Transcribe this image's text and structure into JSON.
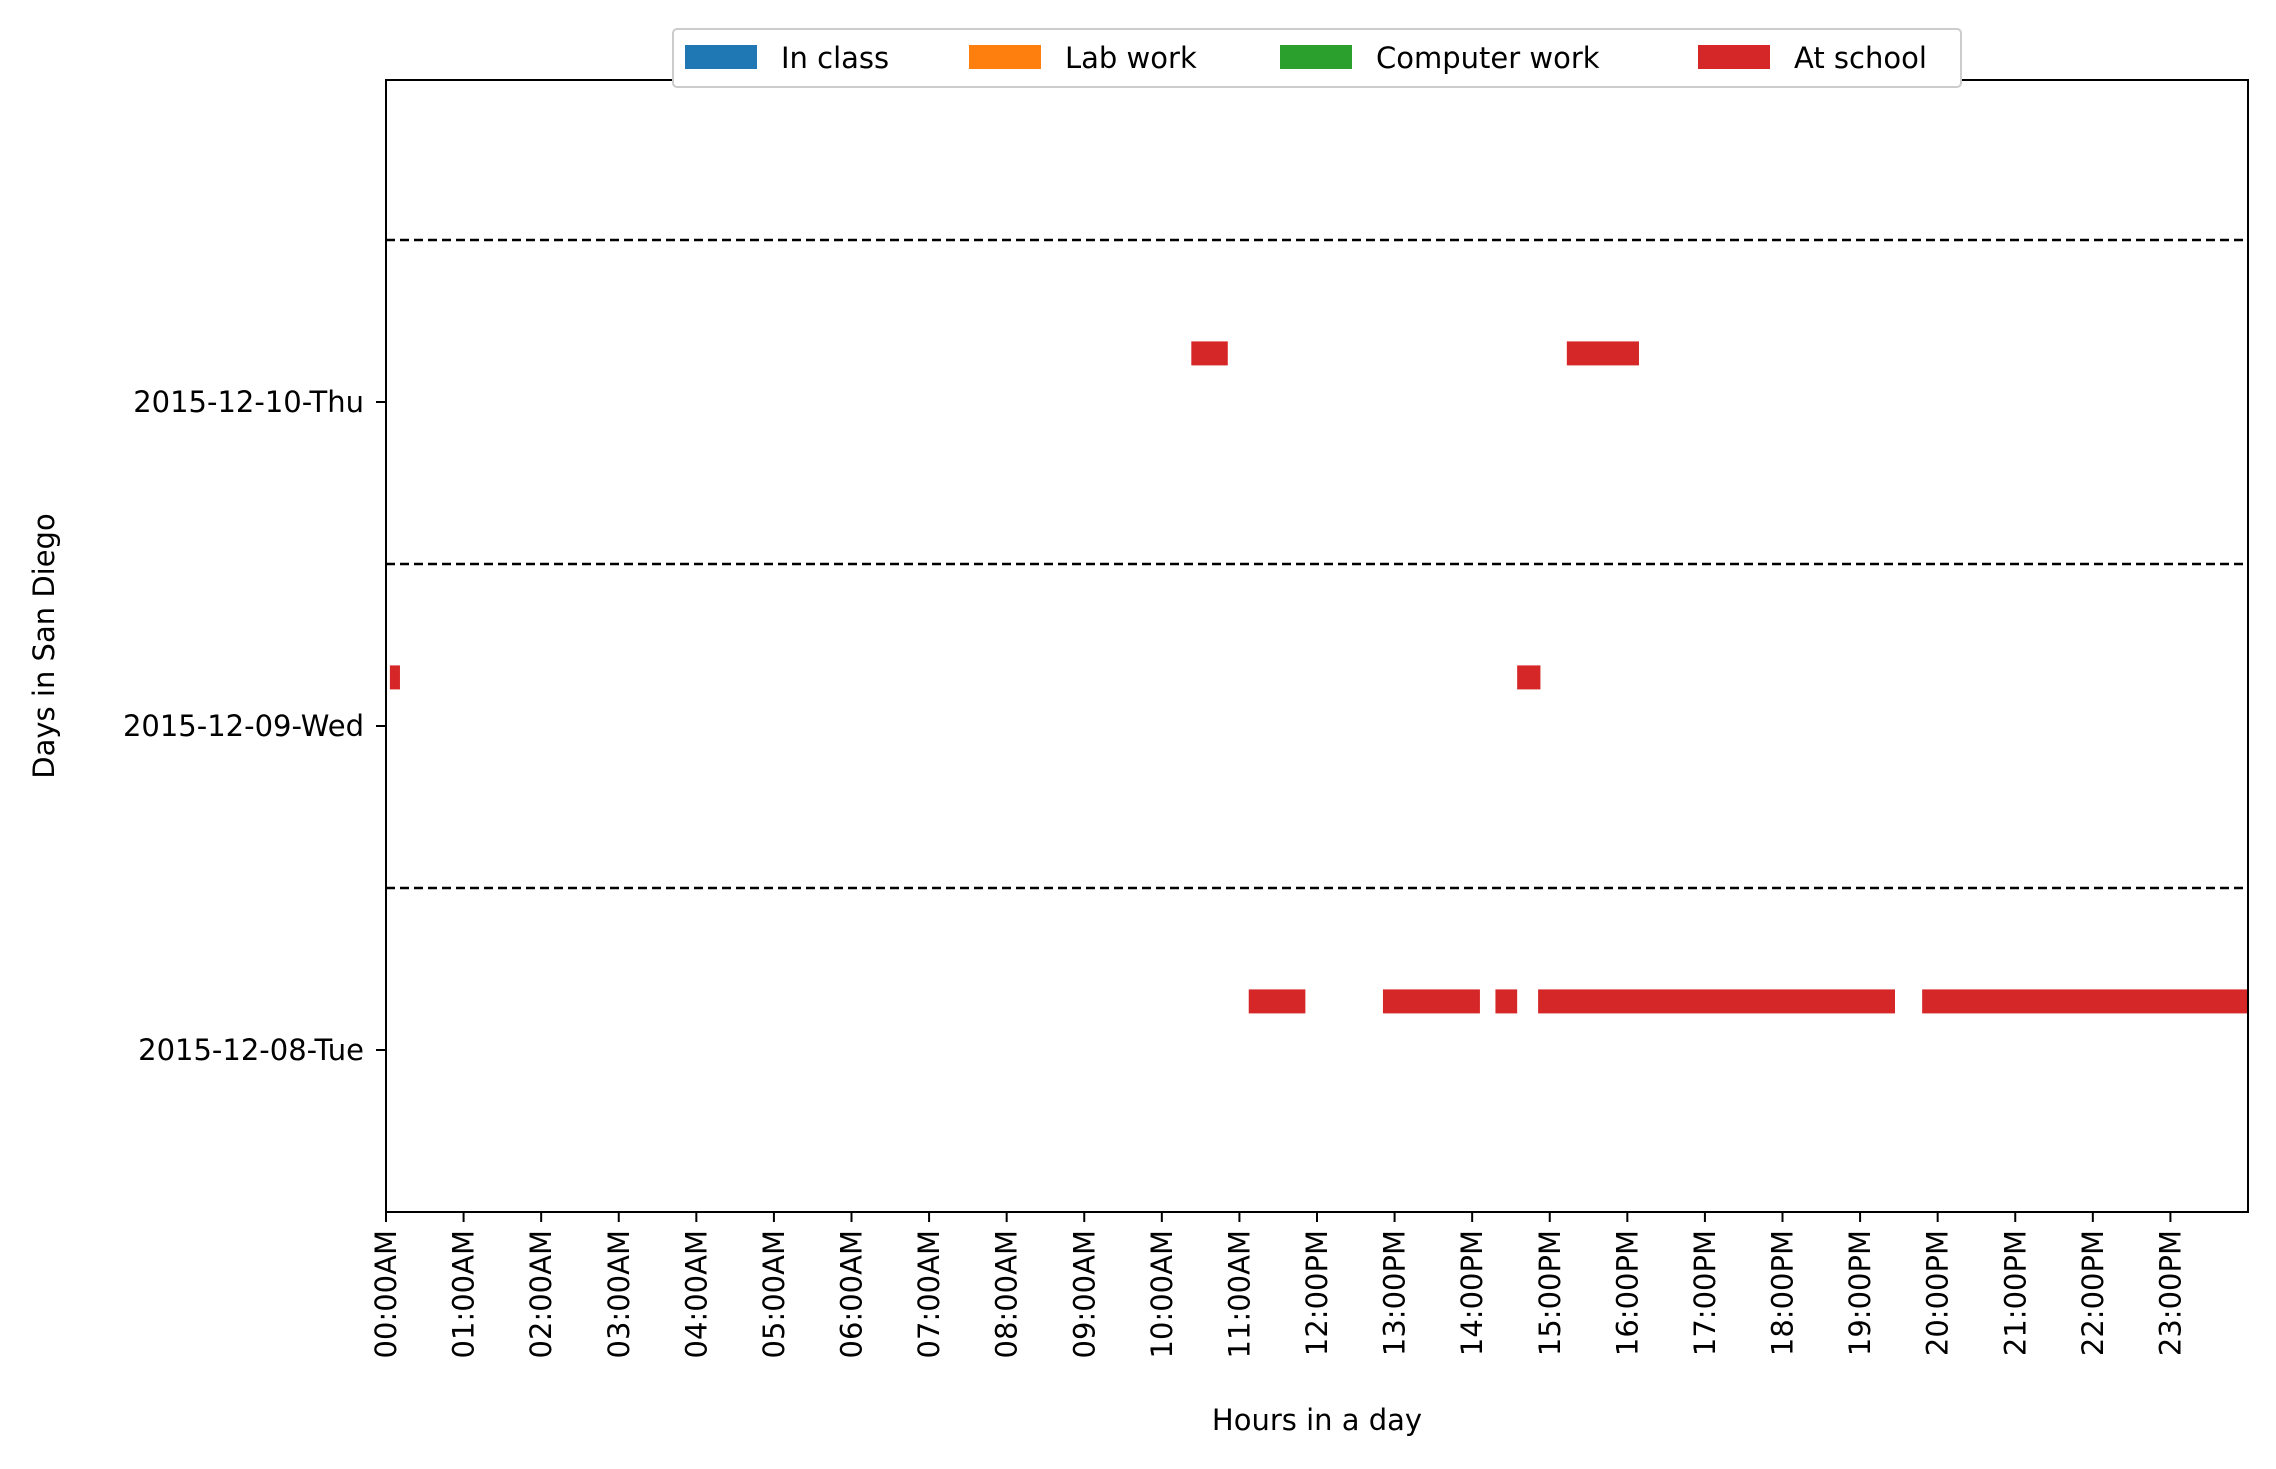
{
  "chart_data": {
    "type": "bar",
    "subtype": "horizontal-timeline",
    "title": "",
    "xlabel": "Hours in a day",
    "ylabel": "Days in San Diego",
    "xlim": [
      0,
      24
    ],
    "x_unit": "hour of day",
    "x_ticks": [
      {
        "value": 0,
        "label": "00:00AM"
      },
      {
        "value": 1,
        "label": "01:00AM"
      },
      {
        "value": 2,
        "label": "02:00AM"
      },
      {
        "value": 3,
        "label": "03:00AM"
      },
      {
        "value": 4,
        "label": "04:00AM"
      },
      {
        "value": 5,
        "label": "05:00AM"
      },
      {
        "value": 6,
        "label": "06:00AM"
      },
      {
        "value": 7,
        "label": "07:00AM"
      },
      {
        "value": 8,
        "label": "08:00AM"
      },
      {
        "value": 9,
        "label": "09:00AM"
      },
      {
        "value": 10,
        "label": "10:00AM"
      },
      {
        "value": 11,
        "label": "11:00AM"
      },
      {
        "value": 12,
        "label": "12:00PM"
      },
      {
        "value": 13,
        "label": "13:00PM"
      },
      {
        "value": 14,
        "label": "14:00PM"
      },
      {
        "value": 15,
        "label": "15:00PM"
      },
      {
        "value": 16,
        "label": "16:00PM"
      },
      {
        "value": 17,
        "label": "17:00PM"
      },
      {
        "value": 18,
        "label": "18:00PM"
      },
      {
        "value": 19,
        "label": "19:00PM"
      },
      {
        "value": 20,
        "label": "20:00PM"
      },
      {
        "value": 21,
        "label": "21:00PM"
      },
      {
        "value": 22,
        "label": "22:00PM"
      },
      {
        "value": 23,
        "label": "23:00PM"
      }
    ],
    "days": [
      "2015-12-08-Tue",
      "2015-12-09-Wed",
      "2015-12-10-Thu"
    ],
    "day_separators": true,
    "grid": false,
    "legend_position": "top-center",
    "series": [
      {
        "name": "In class",
        "color": "#1f77b4",
        "segments": []
      },
      {
        "name": "Lab work",
        "color": "#ff7f0e",
        "segments": []
      },
      {
        "name": "Computer work",
        "color": "#2ca02c",
        "segments": []
      },
      {
        "name": "At school",
        "color": "#d62728",
        "segments": [
          {
            "day": "2015-12-08-Tue",
            "start": 11.12,
            "end": 11.85
          },
          {
            "day": "2015-12-08-Tue",
            "start": 12.85,
            "end": 14.1
          },
          {
            "day": "2015-12-08-Tue",
            "start": 14.3,
            "end": 14.58
          },
          {
            "day": "2015-12-08-Tue",
            "start": 14.85,
            "end": 19.45
          },
          {
            "day": "2015-12-08-Tue",
            "start": 19.8,
            "end": 24.0
          },
          {
            "day": "2015-12-09-Wed",
            "start": 0.05,
            "end": 0.18
          },
          {
            "day": "2015-12-09-Wed",
            "start": 14.58,
            "end": 14.88
          },
          {
            "day": "2015-12-10-Thu",
            "start": 10.38,
            "end": 10.85
          },
          {
            "day": "2015-12-10-Thu",
            "start": 15.22,
            "end": 16.15
          }
        ]
      }
    ]
  }
}
